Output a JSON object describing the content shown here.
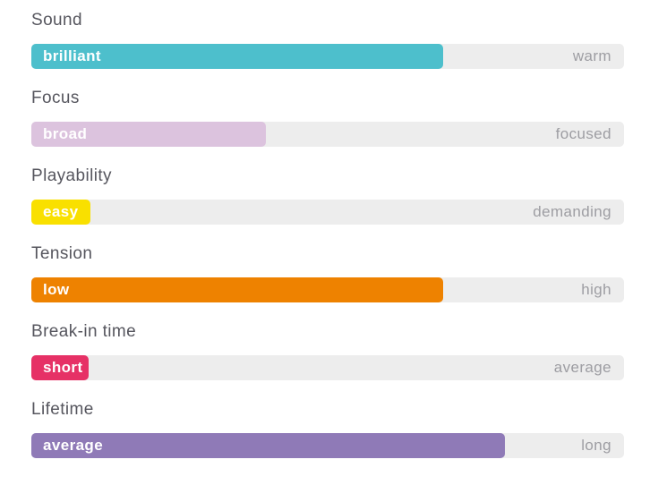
{
  "colors": {
    "background": "#ffffff",
    "track": "#ededed",
    "attribute_text": "#56565e",
    "end_label_text": "#9d9da2",
    "value_text": "#ffffff"
  },
  "chart_data": {
    "type": "bar",
    "orientation": "horizontal",
    "xlim": [
      0,
      100
    ],
    "grid": false,
    "legend": false,
    "categories": [
      "Sound",
      "Focus",
      "Playability",
      "Tension",
      "Break-in time",
      "Lifetime"
    ],
    "values": [
      69.5,
      39.6,
      10,
      69.5,
      9.7,
      79.9
    ],
    "bar_value_labels": [
      "brilliant",
      "broad",
      "easy",
      "low",
      "short",
      "average"
    ],
    "scale_end_labels": [
      "warm",
      "focused",
      "demanding",
      "high",
      "average",
      "long"
    ],
    "rows": [
      {
        "attribute": "Sound",
        "value_label": "brilliant",
        "end_label": "warm",
        "percent": 69.5,
        "color": "#4dbfcc"
      },
      {
        "attribute": "Focus",
        "value_label": "broad",
        "end_label": "focused",
        "percent": 39.6,
        "color": "#dcc3de"
      },
      {
        "attribute": "Playability",
        "value_label": "easy",
        "end_label": "demanding",
        "percent": 10,
        "color": "#f9e000"
      },
      {
        "attribute": "Tension",
        "value_label": "low",
        "end_label": "high",
        "percent": 69.5,
        "color": "#ee8200"
      },
      {
        "attribute": "Break-in time",
        "value_label": "short",
        "end_label": "average",
        "percent": 9.7,
        "color": "#e63166"
      },
      {
        "attribute": "Lifetime",
        "value_label": "average",
        "end_label": "long",
        "percent": 79.9,
        "color": "#8f7ab7"
      }
    ]
  }
}
